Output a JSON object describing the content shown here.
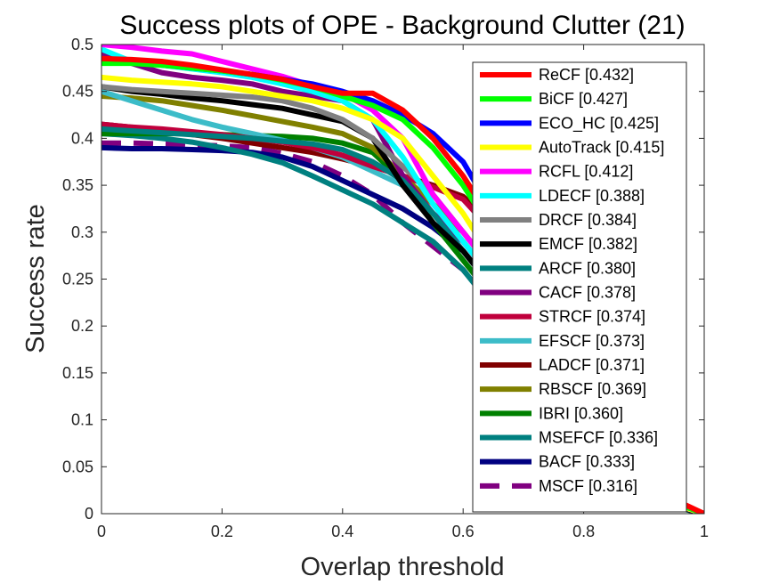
{
  "chart_data": {
    "type": "line",
    "title": "Success plots of OPE - Background Clutter (21)",
    "xlabel": "Overlap threshold",
    "ylabel": "Success rate",
    "xlim": [
      0,
      1
    ],
    "ylim": [
      0,
      0.5
    ],
    "xticks": [
      "0",
      "0.2",
      "0.4",
      "0.6",
      "0.8",
      "1"
    ],
    "yticks": [
      "0",
      "0.05",
      "0.1",
      "0.15",
      "0.2",
      "0.25",
      "0.3",
      "0.35",
      "0.4",
      "0.45",
      "0.5"
    ],
    "grid": false,
    "legend_position": "right",
    "x": [
      0,
      0.05,
      0.1,
      0.15,
      0.2,
      0.25,
      0.3,
      0.35,
      0.4,
      0.45,
      0.5,
      0.55,
      0.6,
      0.65,
      0.7,
      0.75,
      0.8,
      0.85,
      0.9,
      0.95,
      1
    ],
    "series": [
      {
        "name": "ReCF [0.432]",
        "color": "#ff0000",
        "dashed": false,
        "values": [
          0.485,
          0.484,
          0.482,
          0.478,
          0.473,
          0.468,
          0.463,
          0.455,
          0.448,
          0.448,
          0.43,
          0.4,
          0.36,
          0.31,
          0.25,
          0.19,
          0.13,
          0.08,
          0.04,
          0.015,
          0
        ]
      },
      {
        "name": "BiCF [0.427]",
        "color": "#00ff00",
        "dashed": false,
        "values": [
          0.48,
          0.48,
          0.478,
          0.475,
          0.472,
          0.468,
          0.462,
          0.455,
          0.445,
          0.435,
          0.42,
          0.39,
          0.35,
          0.3,
          0.24,
          0.18,
          0.12,
          0.07,
          0.035,
          0.012,
          0
        ]
      },
      {
        "name": "ECO_HC [0.425]",
        "color": "#0000ff",
        "dashed": false,
        "values": [
          0.485,
          0.482,
          0.478,
          0.475,
          0.472,
          0.468,
          0.463,
          0.458,
          0.45,
          0.44,
          0.425,
          0.405,
          0.375,
          0.32,
          0.25,
          0.18,
          0.12,
          0.07,
          0.035,
          0.012,
          0
        ]
      },
      {
        "name": "AutoTrack [0.415]",
        "color": "#ffff00",
        "dashed": false,
        "values": [
          0.465,
          0.462,
          0.46,
          0.458,
          0.455,
          0.45,
          0.445,
          0.44,
          0.432,
          0.42,
          0.4,
          0.36,
          0.32,
          0.27,
          0.22,
          0.16,
          0.11,
          0.065,
          0.03,
          0.01,
          0
        ]
      },
      {
        "name": "RCFL [0.412]",
        "color": "#ff00ff",
        "dashed": false,
        "values": [
          0.5,
          0.497,
          0.493,
          0.49,
          0.482,
          0.474,
          0.466,
          0.456,
          0.448,
          0.43,
          0.4,
          0.34,
          0.3,
          0.26,
          0.21,
          0.155,
          0.105,
          0.06,
          0.028,
          0.01,
          0
        ]
      },
      {
        "name": "LDECF [0.388]",
        "color": "#00ffff",
        "dashed": false,
        "values": [
          0.495,
          0.482,
          0.478,
          0.474,
          0.47,
          0.465,
          0.458,
          0.45,
          0.44,
          0.42,
          0.38,
          0.33,
          0.29,
          0.25,
          0.2,
          0.15,
          0.1,
          0.06,
          0.028,
          0.01,
          0
        ]
      },
      {
        "name": "DRCF [0.384]",
        "color": "#808080",
        "dashed": false,
        "values": [
          0.455,
          0.452,
          0.45,
          0.448,
          0.446,
          0.444,
          0.44,
          0.432,
          0.42,
          0.4,
          0.37,
          0.34,
          0.3,
          0.26,
          0.2,
          0.15,
          0.1,
          0.06,
          0.028,
          0.01,
          0
        ]
      },
      {
        "name": "EMCF [0.382]",
        "color": "#000000",
        "dashed": false,
        "values": [
          0.455,
          0.45,
          0.447,
          0.443,
          0.44,
          0.436,
          0.432,
          0.425,
          0.418,
          0.4,
          0.35,
          0.31,
          0.28,
          0.24,
          0.19,
          0.14,
          0.095,
          0.055,
          0.025,
          0.008,
          0
        ]
      },
      {
        "name": "ARCF [0.380]",
        "color": "#008080",
        "dashed": false,
        "values": [
          0.41,
          0.408,
          0.406,
          0.404,
          0.402,
          0.4,
          0.397,
          0.394,
          0.388,
          0.375,
          0.355,
          0.32,
          0.28,
          0.24,
          0.19,
          0.14,
          0.095,
          0.055,
          0.025,
          0.008,
          0
        ]
      },
      {
        "name": "CACF [0.378]",
        "color": "#800080",
        "dashed": false,
        "values": [
          0.49,
          0.48,
          0.47,
          0.465,
          0.462,
          0.458,
          0.45,
          0.445,
          0.44,
          0.42,
          0.36,
          0.32,
          0.29,
          0.25,
          0.2,
          0.15,
          0.1,
          0.058,
          0.026,
          0.008,
          0
        ]
      },
      {
        "name": "STRCF [0.374]",
        "color": "#c0003c",
        "dashed": false,
        "values": [
          0.415,
          0.412,
          0.41,
          0.407,
          0.404,
          0.4,
          0.396,
          0.39,
          0.382,
          0.37,
          0.36,
          0.348,
          0.335,
          0.3,
          0.25,
          0.19,
          0.13,
          0.075,
          0.035,
          0.012,
          0
        ]
      },
      {
        "name": "EFSCF [0.373]",
        "color": "#3cbcc8",
        "dashed": false,
        "values": [
          0.45,
          0.44,
          0.43,
          0.42,
          0.412,
          0.405,
          0.398,
          0.39,
          0.38,
          0.365,
          0.35,
          0.32,
          0.29,
          0.25,
          0.2,
          0.15,
          0.1,
          0.058,
          0.026,
          0.008,
          0
        ]
      },
      {
        "name": "LADCF [0.371]",
        "color": "#800000",
        "dashed": false,
        "values": [
          0.415,
          0.412,
          0.408,
          0.404,
          0.4,
          0.395,
          0.39,
          0.385,
          0.378,
          0.37,
          0.36,
          0.35,
          0.338,
          0.31,
          0.26,
          0.2,
          0.14,
          0.08,
          0.038,
          0.013,
          0
        ]
      },
      {
        "name": "RBSCF [0.369]",
        "color": "#808000",
        "dashed": false,
        "values": [
          0.445,
          0.443,
          0.44,
          0.435,
          0.43,
          0.424,
          0.418,
          0.412,
          0.405,
          0.39,
          0.36,
          0.33,
          0.3,
          0.26,
          0.21,
          0.155,
          0.105,
          0.06,
          0.028,
          0.01,
          0
        ]
      },
      {
        "name": "IBRI [0.360]",
        "color": "#008000",
        "dashed": false,
        "values": [
          0.405,
          0.405,
          0.405,
          0.405,
          0.404,
          0.403,
          0.402,
          0.4,
          0.395,
          0.385,
          0.355,
          0.31,
          0.27,
          0.23,
          0.18,
          0.135,
          0.09,
          0.052,
          0.024,
          0.008,
          0
        ]
      },
      {
        "name": "MSEFCF [0.336]",
        "color": "#008080",
        "dashed": false,
        "values": [
          0.405,
          0.403,
          0.4,
          0.396,
          0.39,
          0.383,
          0.374,
          0.36,
          0.345,
          0.33,
          0.31,
          0.29,
          0.26,
          0.22,
          0.175,
          0.13,
          0.087,
          0.05,
          0.023,
          0.007,
          0
        ]
      },
      {
        "name": "BACF [0.333]",
        "color": "#000080",
        "dashed": false,
        "values": [
          0.39,
          0.389,
          0.389,
          0.388,
          0.387,
          0.385,
          0.38,
          0.37,
          0.355,
          0.34,
          0.325,
          0.305,
          0.28,
          0.24,
          0.19,
          0.14,
          0.095,
          0.055,
          0.025,
          0.008,
          0
        ]
      },
      {
        "name": "MSCF [0.316]",
        "color": "#800080",
        "dashed": true,
        "values": [
          0.395,
          0.395,
          0.394,
          0.393,
          0.392,
          0.39,
          0.384,
          0.375,
          0.36,
          0.34,
          0.31,
          0.285,
          0.26,
          0.22,
          0.17,
          0.125,
          0.083,
          0.047,
          0.021,
          0.007,
          0
        ]
      }
    ]
  }
}
